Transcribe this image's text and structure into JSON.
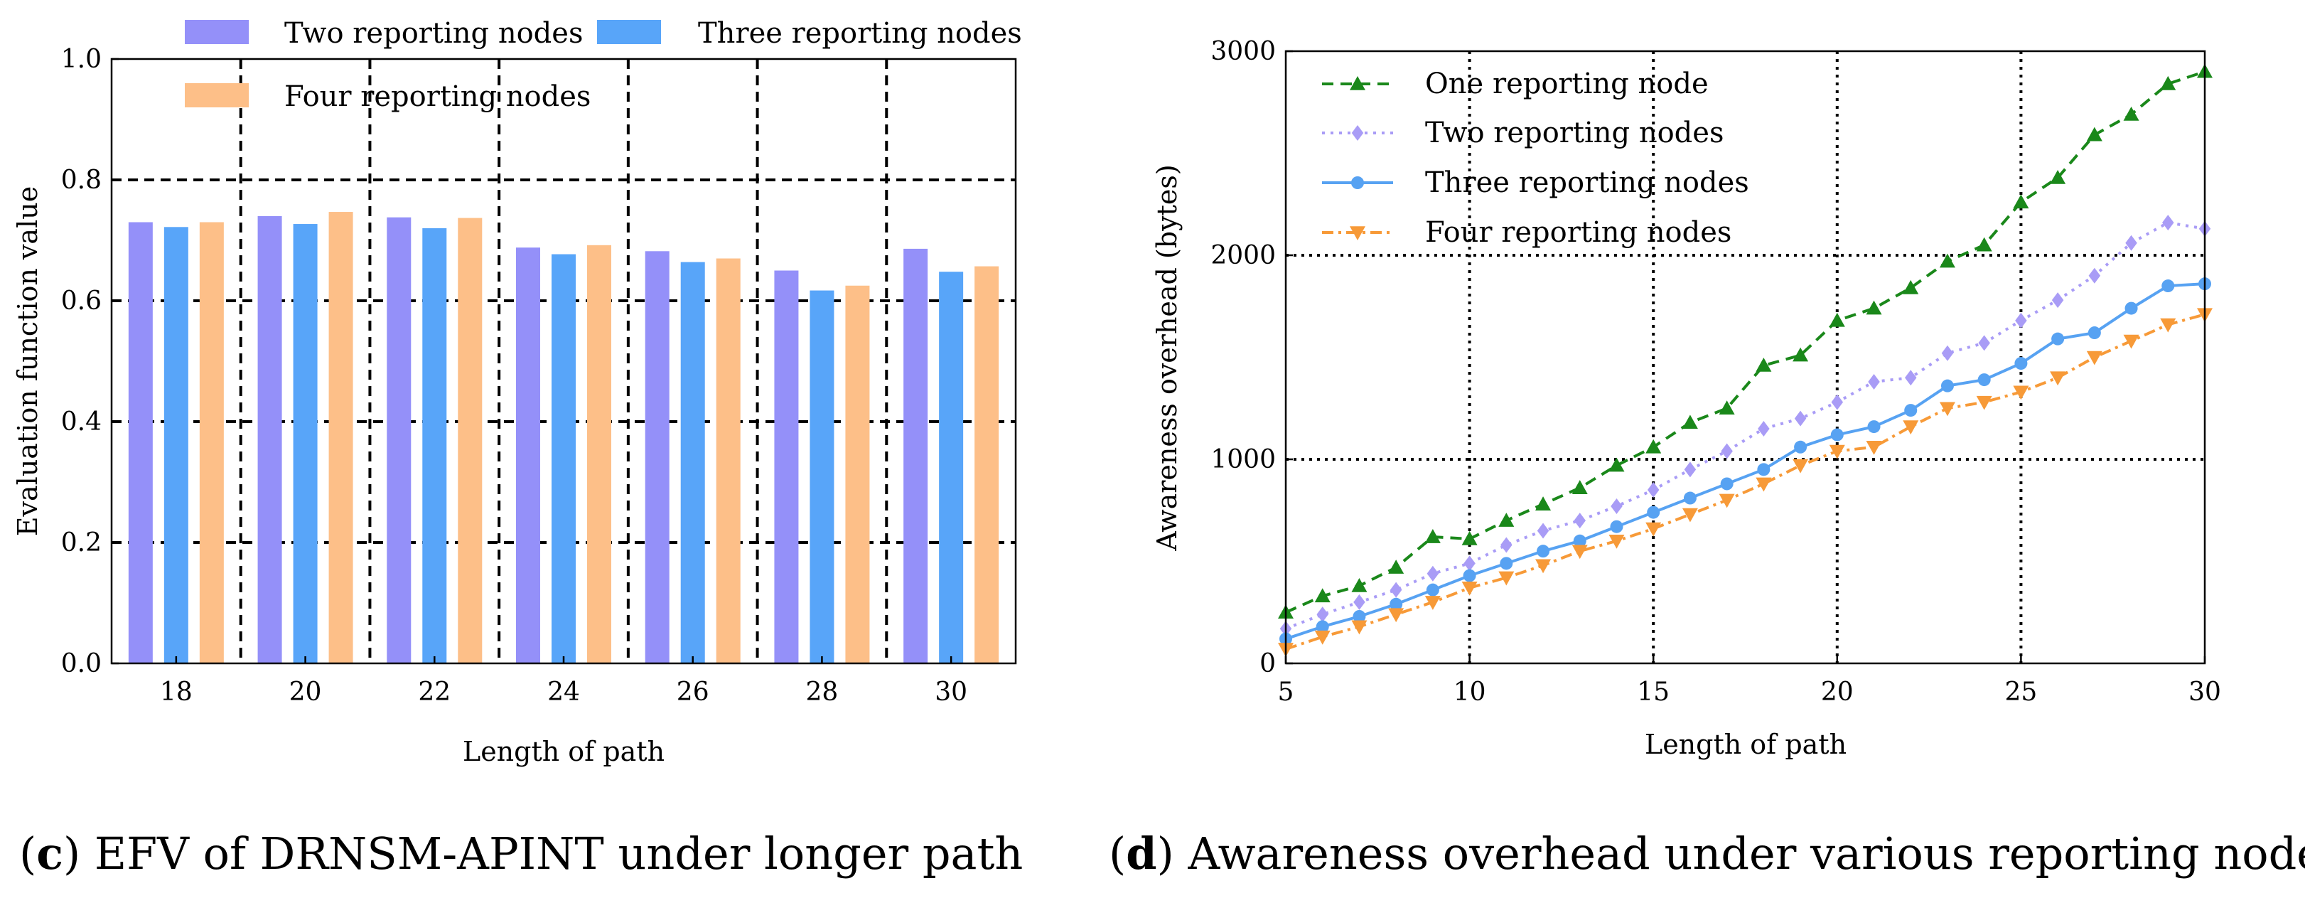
{
  "colors": {
    "two": "#9490f9",
    "three": "#58a5f9",
    "four": "#fdbf88",
    "one_line": "#1a881a",
    "two_line": "#a99cf6",
    "three_line": "#57a2f2",
    "four_line": "#f79a38"
  },
  "captions": {
    "c_letter": "c",
    "c_text": " EFV of DRNSM-APINT under longer path",
    "d_letter": "d",
    "d_text": " Awareness overhead under various reporting nodes"
  },
  "chart_data": [
    {
      "type": "bar",
      "title": "",
      "xlabel": "Length of path",
      "ylabel": "Evaluation function value",
      "categories": [
        "18",
        "20",
        "22",
        "24",
        "26",
        "28",
        "30"
      ],
      "ylim": [
        0,
        1.0
      ],
      "yticks": [
        "0.0",
        "0.2",
        "0.4",
        "0.6",
        "0.8",
        "1.0"
      ],
      "grid": "dashed",
      "legend_position": "top",
      "series": [
        {
          "name": "Two reporting nodes",
          "values": [
            0.73,
            0.74,
            0.738,
            0.688,
            0.682,
            0.65,
            0.686
          ]
        },
        {
          "name": "Three reporting nodes",
          "values": [
            0.722,
            0.727,
            0.72,
            0.677,
            0.664,
            0.617,
            0.648
          ]
        },
        {
          "name": "Four reporting nodes",
          "values": [
            0.73,
            0.747,
            0.737,
            0.692,
            0.67,
            0.625,
            0.657
          ]
        }
      ]
    },
    {
      "type": "line",
      "title": "",
      "xlabel": "Length of path",
      "ylabel": "Awareness overhead (bytes)",
      "x": [
        5,
        6,
        7,
        8,
        9,
        10,
        11,
        12,
        13,
        14,
        15,
        16,
        17,
        18,
        19,
        20,
        21,
        22,
        23,
        24,
        25,
        26,
        27,
        28,
        29,
        30
      ],
      "xlim": [
        5,
        30
      ],
      "ylim": [
        0,
        3000
      ],
      "xticks": [
        "5",
        "10",
        "15",
        "20",
        "25",
        "30"
      ],
      "yticks": [
        "0",
        "1000",
        "2000",
        "3000"
      ],
      "grid": "dotted",
      "legend_position": "top-left",
      "series": [
        {
          "name": "One reporting node",
          "values": [
            250,
            330,
            380,
            470,
            620,
            610,
            700,
            780,
            860,
            970,
            1060,
            1180,
            1250,
            1460,
            1510,
            1680,
            1740,
            1840,
            1970,
            2050,
            2260,
            2380,
            2590,
            2690,
            2840,
            2900
          ]
        },
        {
          "name": "Two reporting nodes",
          "values": [
            170,
            240,
            300,
            360,
            440,
            490,
            580,
            650,
            700,
            770,
            850,
            950,
            1040,
            1150,
            1200,
            1280,
            1380,
            1400,
            1520,
            1570,
            1680,
            1780,
            1900,
            2060,
            2160,
            2130
          ]
        },
        {
          "name": "Three reporting nodes",
          "values": [
            120,
            180,
            230,
            290,
            360,
            430,
            490,
            550,
            600,
            670,
            740,
            810,
            880,
            950,
            1060,
            1120,
            1160,
            1240,
            1360,
            1390,
            1470,
            1590,
            1620,
            1740,
            1850,
            1860
          ]
        },
        {
          "name": "Four reporting nodes",
          "values": [
            70,
            130,
            180,
            240,
            300,
            370,
            420,
            480,
            550,
            600,
            660,
            730,
            800,
            880,
            970,
            1040,
            1060,
            1160,
            1250,
            1280,
            1330,
            1400,
            1500,
            1580,
            1660,
            1710
          ]
        }
      ]
    }
  ]
}
